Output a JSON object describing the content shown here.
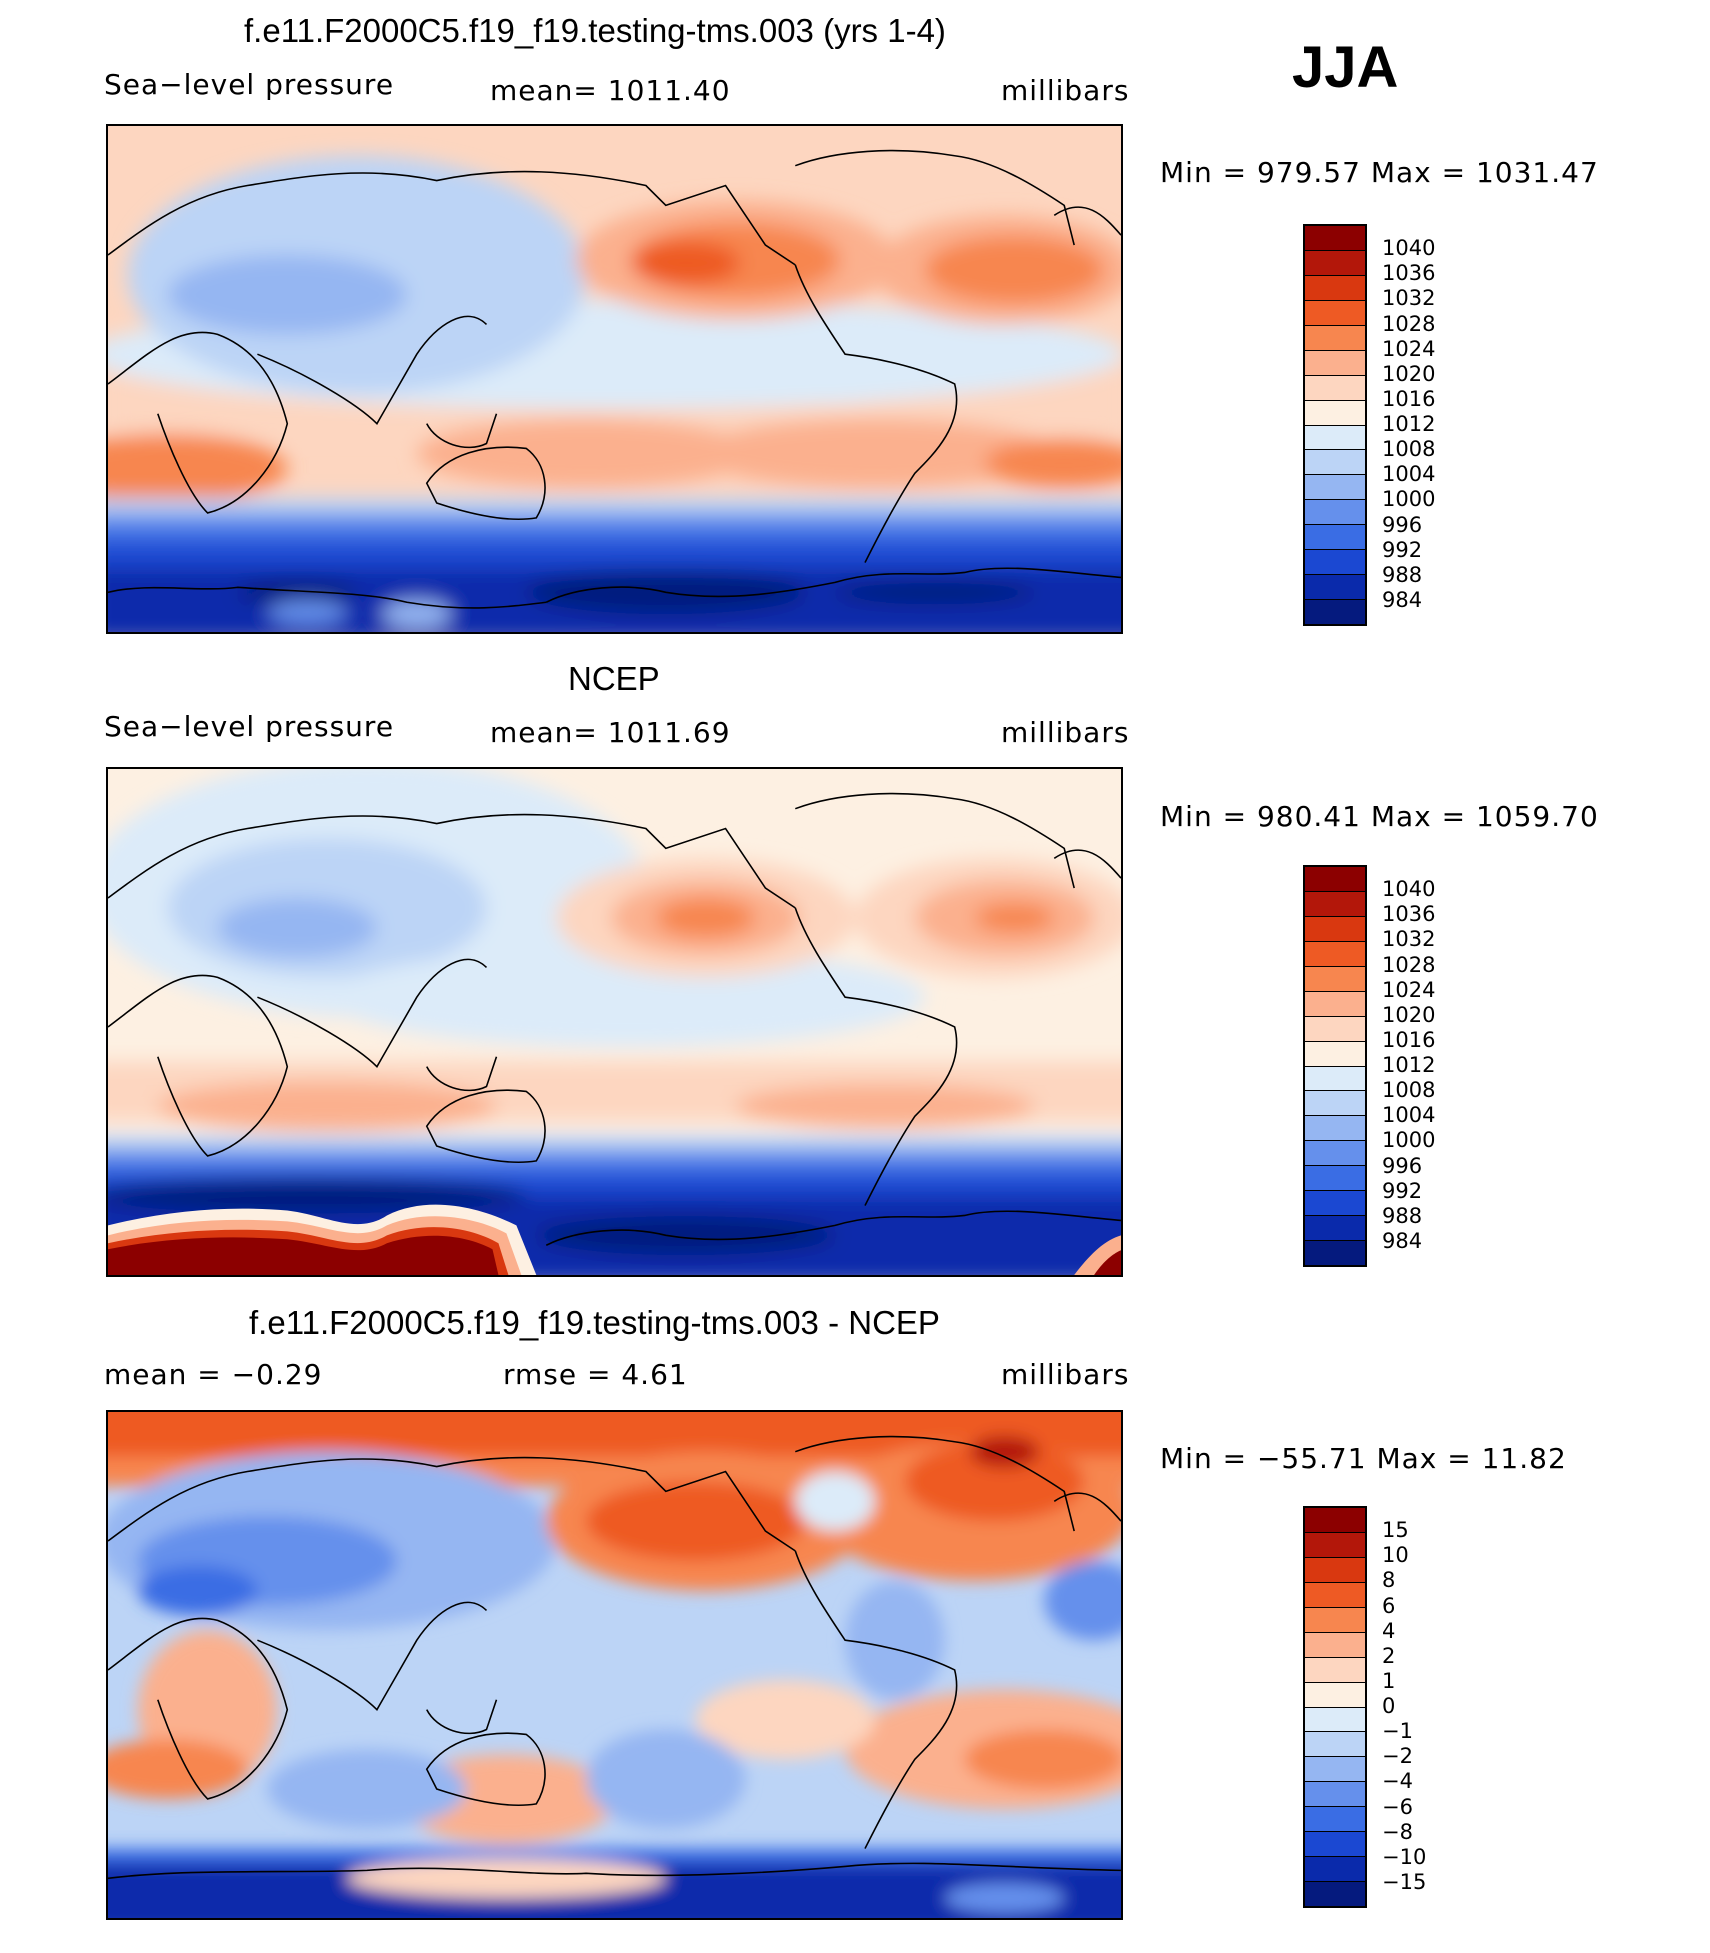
{
  "season": "JJA",
  "panels": [
    {
      "title": "f.e11.F2000C5.f19_f19.testing-tms.003 (yrs 1-4)",
      "left_label": "Sea−level pressure",
      "center_label": "mean=  1011.40",
      "units": "millibars",
      "minmax": "Min  =  979.57  Max  =  1031.47",
      "legend_levels": [
        "1040",
        "1036",
        "1032",
        "1028",
        "1024",
        "1020",
        "1016",
        "1012",
        "1008",
        "1004",
        "1000",
        "996",
        "992",
        "988",
        "984"
      ],
      "legend_colors": [
        "#8c0000",
        "#b3170a",
        "#d93810",
        "#ee5a24",
        "#f7864f",
        "#fbb08e",
        "#fdd6c0",
        "#fdf0e2",
        "#dcebf9",
        "#bcd4f6",
        "#95b6f2",
        "#6590ec",
        "#3a6de4",
        "#1b48d2",
        "#0a2aab",
        "#051a7e"
      ]
    },
    {
      "title": "NCEP",
      "left_label": "Sea−level pressure",
      "center_label": "mean=  1011.69",
      "units": "millibars",
      "minmax": "Min  =  980.41  Max  =  1059.70",
      "legend_levels": [
        "1040",
        "1036",
        "1032",
        "1028",
        "1024",
        "1020",
        "1016",
        "1012",
        "1008",
        "1004",
        "1000",
        "996",
        "992",
        "988",
        "984"
      ],
      "legend_colors": [
        "#8c0000",
        "#b3170a",
        "#d93810",
        "#ee5a24",
        "#f7864f",
        "#fbb08e",
        "#fdd6c0",
        "#fdf0e2",
        "#dcebf9",
        "#bcd4f6",
        "#95b6f2",
        "#6590ec",
        "#3a6de4",
        "#1b48d2",
        "#0a2aab",
        "#051a7e"
      ]
    },
    {
      "title": "f.e11.F2000C5.f19_f19.testing-tms.003 - NCEP",
      "left_label": "mean  =    −0.29",
      "center_label": "rmse  =     4.61",
      "units": "millibars",
      "minmax": "Min  =  −55.71  Max  =    11.82",
      "legend_levels": [
        "15",
        "10",
        "8",
        "6",
        "4",
        "2",
        "1",
        "0",
        "−1",
        "−2",
        "−4",
        "−6",
        "−8",
        "−10",
        "−15"
      ],
      "legend_colors": [
        "#8c0000",
        "#b3170a",
        "#d93810",
        "#ee5a24",
        "#f7864f",
        "#fbb08e",
        "#fdd6c0",
        "#fdf0e2",
        "#dcebf9",
        "#bcd4f6",
        "#95b6f2",
        "#6590ec",
        "#3a6de4",
        "#1b48d2",
        "#0a2aab",
        "#051a7e"
      ]
    }
  ]
}
